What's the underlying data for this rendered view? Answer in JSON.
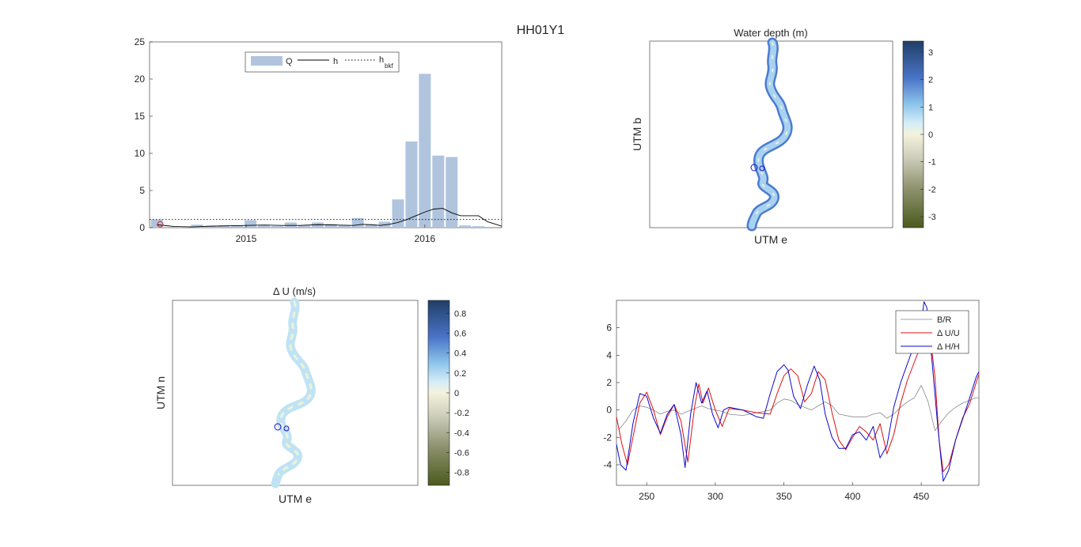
{
  "figure": {
    "title": "HH01Y1"
  },
  "chart_data": [
    {
      "id": "hydrograph",
      "type": "bar",
      "title": "",
      "xlabel": "",
      "ylabel": "",
      "ylim": [
        0,
        25
      ],
      "yticks": [
        "0",
        "5",
        "10",
        "15",
        "20",
        "25"
      ],
      "xticklabels": [
        "2015",
        "2016"
      ],
      "xlim": [
        2014.46,
        2016.43
      ],
      "xticks_num": [
        2015.0,
        2016.0
      ],
      "bar_x": [
        2014.5,
        2014.575,
        2014.65,
        2014.725,
        2014.8,
        2014.875,
        2014.95,
        2015.025,
        2015.1,
        2015.175,
        2015.25,
        2015.325,
        2015.4,
        2015.475,
        2015.55,
        2015.625,
        2015.7,
        2015.775,
        2015.85,
        2015.925,
        2016.0,
        2016.075,
        2016.15,
        2016.225,
        2016.3
      ],
      "series": [
        {
          "name": "Q",
          "values": [
            1.1,
            0.1,
            0.05,
            0.4,
            0.2,
            0.3,
            0.3,
            1.0,
            0.3,
            0.2,
            0.7,
            0.3,
            0.7,
            0.5,
            0.3,
            1.3,
            0.4,
            0.8,
            3.8,
            11.6,
            20.7,
            9.7,
            9.5,
            0.3,
            0.2
          ],
          "color": "#b0c4de"
        },
        {
          "name": "h",
          "x": [
            2014.5,
            2014.6,
            2014.7,
            2014.8,
            2014.9,
            2015.0,
            2015.1,
            2015.2,
            2015.3,
            2015.4,
            2015.5,
            2015.6,
            2015.65,
            2015.7,
            2015.75,
            2015.8,
            2015.85,
            2015.9,
            2015.95,
            2016.0,
            2016.05,
            2016.1,
            2016.15,
            2016.2,
            2016.25,
            2016.3,
            2016.35,
            2016.43
          ],
          "values": [
            0.4,
            0.15,
            0.1,
            0.2,
            0.25,
            0.3,
            0.35,
            0.3,
            0.3,
            0.4,
            0.35,
            0.3,
            0.45,
            0.4,
            0.3,
            0.45,
            0.7,
            1.1,
            1.6,
            2.1,
            2.5,
            2.6,
            2.0,
            1.6,
            1.6,
            1.6,
            0.8,
            0.2
          ],
          "color": "#000000"
        },
        {
          "name": "h",
          "name_sub": "bkf",
          "constant": 1.1,
          "color": "#000000",
          "style": "dotted"
        }
      ],
      "marker": {
        "x": 2014.52,
        "y": 0.45,
        "color": "#e02020"
      },
      "legend": "top-center"
    },
    {
      "id": "water-depth-map",
      "type": "heatmap",
      "title": "Water depth (m)",
      "xlabel": "UTM e",
      "ylabel": "UTM b",
      "colorbar": {
        "ticks": [
          "3",
          "2",
          "1",
          "0",
          "-1",
          "-2",
          "-3"
        ],
        "range": [
          -3.4,
          3.4
        ]
      }
    },
    {
      "id": "velocity-map",
      "type": "heatmap",
      "title": "Δ U (m/s)",
      "xlabel": "UTM e",
      "ylabel": "UTM n",
      "colorbar": {
        "ticks": [
          "0.8",
          "0.6",
          "0.4",
          "0.2",
          "0",
          "-0.2",
          "-0.4",
          "-0.6",
          "-0.8"
        ],
        "range": [
          -0.93,
          0.93
        ]
      }
    },
    {
      "id": "profiles",
      "type": "line",
      "title": "",
      "xlabel": "",
      "ylabel": "",
      "xlim": [
        228,
        492
      ],
      "ylim": [
        -5.5,
        8
      ],
      "xticks": [
        250,
        300,
        350,
        400,
        450
      ],
      "yticks": [
        -4,
        -2,
        0,
        2,
        4,
        6
      ],
      "legend": "top-right",
      "series": [
        {
          "name": "B/R",
          "color": "#888888",
          "width": 0.8,
          "x": [
            230,
            235,
            240,
            245,
            250,
            255,
            260,
            265,
            270,
            275,
            280,
            285,
            290,
            295,
            300,
            305,
            310,
            320,
            330,
            340,
            345,
            350,
            355,
            360,
            365,
            370,
            375,
            380,
            385,
            390,
            400,
            410,
            415,
            420,
            425,
            430,
            435,
            440,
            445,
            450,
            455,
            460,
            465,
            470,
            475,
            480,
            485,
            490,
            492
          ],
          "y": [
            -1.4,
            -0.8,
            0.0,
            0.3,
            0.2,
            0.0,
            -0.3,
            -0.1,
            0.0,
            -0.3,
            -0.1,
            0.1,
            0.3,
            0.1,
            0.0,
            -0.1,
            -0.3,
            -0.4,
            -0.2,
            0.0,
            0.5,
            0.8,
            0.7,
            0.4,
            0.2,
            0.0,
            0.3,
            0.6,
            0.3,
            -0.3,
            -0.5,
            -0.5,
            -0.3,
            -0.2,
            -0.6,
            -0.3,
            0.2,
            0.6,
            0.9,
            1.8,
            0.6,
            -1.5,
            -0.8,
            -0.2,
            0.2,
            0.5,
            0.7,
            0.9,
            0.9
          ]
        },
        {
          "name": "Δ U/U",
          "color": "#e01010",
          "width": 1.0,
          "x": [
            228,
            232,
            236,
            240,
            245,
            250,
            255,
            260,
            265,
            270,
            275,
            280,
            285,
            288,
            291,
            295,
            300,
            305,
            310,
            320,
            330,
            340,
            345,
            350,
            355,
            360,
            365,
            370,
            375,
            380,
            385,
            390,
            395,
            400,
            405,
            410,
            415,
            420,
            425,
            430,
            435,
            440,
            445,
            450,
            453,
            456,
            460,
            463,
            466,
            470,
            475,
            480,
            485,
            490,
            492
          ],
          "y": [
            -0.5,
            -2.5,
            -4.0,
            -2.0,
            0.5,
            1.3,
            0.0,
            -1.8,
            -0.5,
            0.4,
            -0.8,
            -3.8,
            0.3,
            1.9,
            0.5,
            1.6,
            0.0,
            -1.2,
            0.1,
            0.0,
            -0.2,
            -0.3,
            1.2,
            2.5,
            3.0,
            2.5,
            0.6,
            1.2,
            2.8,
            2.2,
            -0.2,
            -2.2,
            -2.9,
            -2.0,
            -1.2,
            -1.6,
            -2.2,
            -1.0,
            -3.2,
            -1.8,
            0.5,
            2.2,
            3.5,
            4.8,
            7.2,
            5.8,
            2.4,
            -2.2,
            -4.5,
            -4.0,
            -2.2,
            -0.6,
            0.4,
            2.0,
            2.6
          ]
        },
        {
          "name": "Δ H/H",
          "color": "#0a0ad0",
          "width": 1.0,
          "x": [
            228,
            231,
            235,
            240,
            245,
            250,
            255,
            260,
            265,
            270,
            275,
            278,
            282,
            286,
            290,
            294,
            298,
            302,
            306,
            310,
            320,
            330,
            335,
            340,
            345,
            350,
            353,
            357,
            362,
            367,
            372,
            376,
            380,
            385,
            390,
            395,
            400,
            405,
            410,
            415,
            420,
            425,
            430,
            435,
            440,
            445,
            450,
            452,
            454,
            458,
            462,
            466,
            470,
            475,
            480,
            485,
            490,
            492
          ],
          "y": [
            -2.5,
            -4.0,
            -4.4,
            -1.0,
            1.2,
            1.0,
            -0.6,
            -1.7,
            -0.3,
            0.4,
            -1.8,
            -4.2,
            -0.3,
            2.0,
            0.5,
            1.4,
            -0.3,
            -1.3,
            0.0,
            0.2,
            0.0,
            -0.5,
            -0.6,
            1.2,
            2.8,
            3.3,
            2.9,
            1.0,
            0.1,
            1.8,
            3.2,
            2.2,
            -0.3,
            -2.0,
            -2.8,
            -2.8,
            -1.8,
            -1.6,
            -2.2,
            -1.2,
            -3.5,
            -2.6,
            0.2,
            2.0,
            3.4,
            4.8,
            6.2,
            7.9,
            7.5,
            3.4,
            -1.2,
            -5.2,
            -4.4,
            -2.2,
            -0.7,
            0.8,
            2.4,
            2.8
          ]
        }
      ]
    }
  ]
}
